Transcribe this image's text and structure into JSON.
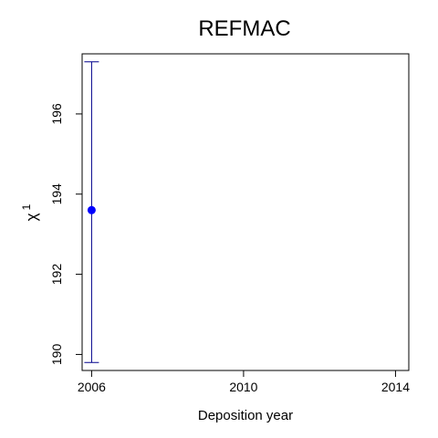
{
  "chart_data": {
    "type": "scatter",
    "title": "REFMAC",
    "xlabel": "Deposition year",
    "ylabel": "χ",
    "ylabel_superscript": "1",
    "xlim": [
      2005.75,
      2014.35
    ],
    "ylim": [
      189.6,
      197.5
    ],
    "x_ticks": [
      2006,
      2010,
      2014
    ],
    "y_ticks": [
      190,
      192,
      194,
      196
    ],
    "points": [
      {
        "x": 2006,
        "y": 193.6,
        "err_low": 189.8,
        "err_high": 197.3
      }
    ],
    "colors": {
      "point": "#0000ff",
      "errorbar": "#00008b",
      "axis": "#000000"
    },
    "grid": false
  }
}
